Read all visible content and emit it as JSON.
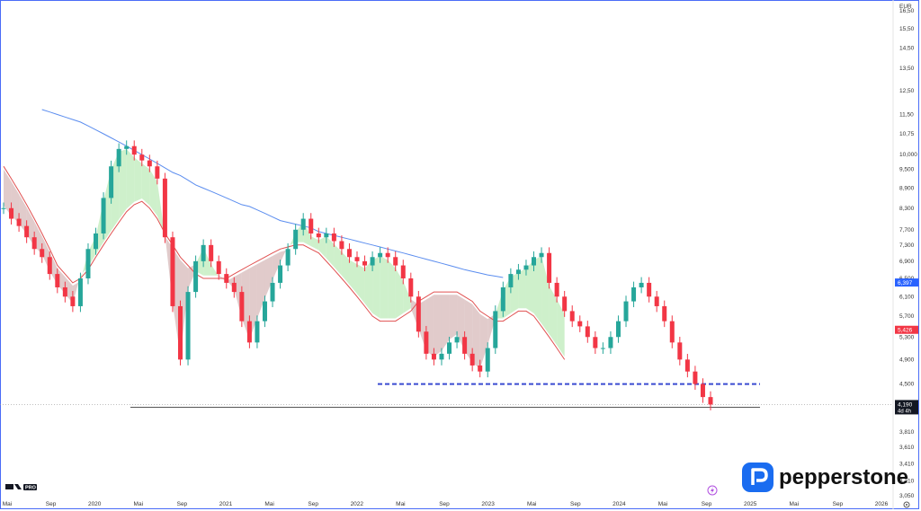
{
  "chart_data": {
    "type": "candlestick",
    "currency": "EUR",
    "price_axis_ticks": [
      "16,50",
      "15,50",
      "14,50",
      "13,50",
      "12,50",
      "11,50",
      "10,75",
      "10,000",
      "9,500",
      "8,900",
      "8,300",
      "7,700",
      "7,300",
      "6,900",
      "6,500",
      "6,100",
      "5,700",
      "5,300",
      "4,900",
      "4,500",
      "4,100",
      "3,810",
      "3,610",
      "3,410",
      "3,210",
      "3,050"
    ],
    "time_axis_ticks": [
      "Mai",
      "Sep",
      "2020",
      "Mai",
      "Sep",
      "2021",
      "Mai",
      "Sep",
      "2022",
      "Mai",
      "Sep",
      "2023",
      "Mai",
      "Sep",
      "2024",
      "Mai",
      "Sep",
      "2025",
      "Mai",
      "Sep",
      "2026"
    ],
    "price_labels": [
      {
        "value": "6,397",
        "color": "#2962ff"
      },
      {
        "value": "5,426",
        "color": "#f23645"
      },
      {
        "value": "4,190",
        "sub": "4d 4h",
        "color": "#131722"
      }
    ],
    "series": [
      {
        "name": "price",
        "values": [
          8.3,
          8.0,
          7.8,
          7.5,
          7.2,
          7.0,
          6.6,
          6.3,
          6.1,
          5.9,
          6.5,
          7.2,
          7.6,
          8.6,
          9.6,
          10.2,
          10.3,
          10.0,
          9.8,
          9.6,
          9.2,
          7.5,
          5.9,
          4.9,
          6.2,
          6.9,
          7.3,
          6.9,
          6.6,
          6.4,
          6.2,
          5.6,
          5.2,
          5.6,
          6.0,
          6.4,
          6.8,
          7.2,
          7.7,
          8.0,
          7.6,
          7.5,
          7.6,
          7.4,
          7.2,
          7.0,
          6.9,
          6.8,
          7.0,
          7.1,
          7.0,
          6.8,
          6.5,
          6.1,
          5.4,
          5.0,
          4.9,
          5.0,
          5.2,
          5.3,
          5.0,
          4.8,
          4.7,
          5.1,
          5.8,
          6.3,
          6.6,
          6.7,
          6.8,
          7.0,
          7.1,
          6.4,
          6.1,
          5.8,
          5.6,
          5.5,
          5.3,
          5.1,
          5.1,
          5.3,
          5.6,
          6.0,
          6.3,
          6.4,
          6.1,
          5.9,
          5.6,
          5.2,
          4.9,
          4.7,
          4.5,
          4.3,
          4.19
        ]
      },
      {
        "name": "ma200",
        "values": [
          null,
          null,
          null,
          null,
          null,
          11.7,
          11.6,
          11.5,
          11.4,
          11.3,
          11.2,
          11.05,
          10.9,
          10.75,
          10.6,
          10.45,
          10.3,
          10.15,
          10.0,
          9.85,
          9.7,
          9.55,
          9.4,
          9.3,
          9.15,
          9.0,
          8.9,
          8.8,
          8.7,
          8.6,
          8.5,
          8.4,
          8.35,
          8.25,
          8.15,
          8.05,
          7.95,
          7.9,
          7.85,
          7.8,
          7.75,
          7.65,
          7.6,
          7.55,
          7.5,
          7.45,
          7.4,
          7.35,
          7.3,
          7.25,
          7.2,
          7.15,
          7.1,
          7.05,
          7.0,
          6.95,
          6.9,
          6.85,
          6.8,
          6.75,
          6.7,
          6.66,
          6.62,
          6.58,
          6.55,
          6.52
        ]
      },
      {
        "name": "ma50",
        "values": [
          9.6,
          9.2,
          8.8,
          8.4,
          8.0,
          7.6,
          7.2,
          6.8,
          6.6,
          6.4,
          6.5,
          6.7,
          7.0,
          7.3,
          7.6,
          7.9,
          8.2,
          8.4,
          8.5,
          8.3,
          8.0,
          7.6,
          7.3,
          7.0,
          6.8,
          6.6,
          6.5,
          6.5,
          6.5,
          6.5,
          6.6,
          6.7,
          6.8,
          6.9,
          7.0,
          7.1,
          7.2,
          7.25,
          7.3,
          7.3,
          7.2,
          7.1,
          6.9,
          6.7,
          6.5,
          6.3,
          6.1,
          5.9,
          5.7,
          5.6,
          5.6,
          5.6,
          5.7,
          5.8,
          6.0,
          6.1,
          6.2,
          6.2,
          6.2,
          6.2,
          6.1,
          6.0,
          5.8,
          5.7,
          5.6,
          5.6,
          5.7,
          5.8,
          5.8,
          5.7,
          5.5,
          5.3,
          5.1,
          4.9
        ]
      }
    ],
    "horizontal_levels": [
      4.5,
      4.15
    ],
    "xlim": [
      2019.25,
      2026.3
    ],
    "ylim": [
      3.05,
      16.5
    ],
    "log_scale": true,
    "grid": false
  },
  "watermarks": {
    "platform": "TV PRO",
    "brand": "pepperstone"
  },
  "colors": {
    "up_candle": "#26a69a",
    "down_candle": "#f23645",
    "ma200": "#5b8def",
    "ma50": "#e05050",
    "cloud_bull": "#a6e3a1",
    "cloud_bear": "#c9a0a0",
    "level_line": "#3a4bd1",
    "brand_blue": "#1a6cf0"
  }
}
